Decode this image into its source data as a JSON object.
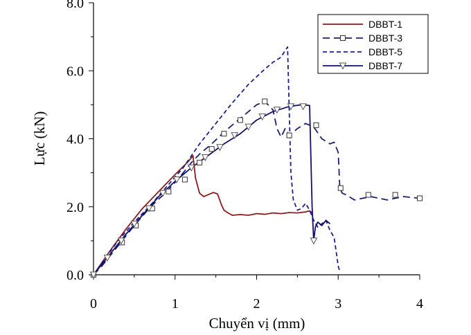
{
  "chart_data": {
    "type": "line",
    "title": "",
    "xlabel": "Chuyển vị (mm)",
    "ylabel": "Lực (kN)",
    "xlim": [
      0,
      4
    ],
    "ylim": [
      0,
      8
    ],
    "xticks": [
      0,
      1,
      2,
      3,
      4
    ],
    "xtick_labels": [
      "0",
      "1",
      "2",
      "3",
      "4"
    ],
    "yticks": [
      0,
      2,
      4,
      6,
      8
    ],
    "ytick_labels": [
      "0.0",
      "2.0",
      "4.0",
      "6.0",
      "8.0"
    ],
    "grid": false,
    "legend_position": "top-right",
    "series": [
      {
        "name": "DBBT-1",
        "color": "#8b1a1a",
        "dash": "solid",
        "marker": "none",
        "x": [
          0,
          0.2,
          0.4,
          0.6,
          0.8,
          1.0,
          1.15,
          1.22,
          1.25,
          1.3,
          1.35,
          1.4,
          1.47,
          1.52,
          1.57,
          1.6,
          1.65,
          1.7,
          1.8,
          1.9,
          2.0,
          2.1,
          2.2,
          2.3,
          2.4,
          2.5,
          2.6,
          2.65,
          2.68
        ],
        "y": [
          0,
          0.7,
          1.35,
          1.95,
          2.45,
          2.95,
          3.3,
          3.5,
          2.85,
          2.4,
          2.3,
          2.35,
          2.42,
          2.38,
          2.05,
          1.9,
          1.82,
          1.75,
          1.77,
          1.75,
          1.8,
          1.78,
          1.82,
          1.8,
          1.83,
          1.82,
          1.85,
          1.88,
          1.82
        ]
      },
      {
        "name": "DBBT-3",
        "color": "#1a1f6e",
        "dash": "long-dash",
        "marker": "square",
        "x": [
          0,
          0.1,
          0.2,
          0.35,
          0.5,
          0.7,
          0.9,
          1.05,
          1.2,
          1.3,
          1.45,
          1.6,
          1.8,
          2.0,
          2.1,
          2.2,
          2.25,
          2.3,
          2.35,
          2.4,
          2.5,
          2.6,
          2.7,
          2.8,
          2.9,
          2.95,
          3.0,
          3.02,
          3.05,
          3.1,
          3.2,
          3.4,
          3.6,
          3.8,
          4.0
        ],
        "y": [
          0,
          0.25,
          0.55,
          1.0,
          1.45,
          2.0,
          2.45,
          2.85,
          3.3,
          3.55,
          3.85,
          4.2,
          4.6,
          5.0,
          5.1,
          4.85,
          4.3,
          4.05,
          4.3,
          4.1,
          4.3,
          4.45,
          4.35,
          4.0,
          3.85,
          3.9,
          3.6,
          2.55,
          2.4,
          2.35,
          2.2,
          2.3,
          2.2,
          2.3,
          2.25
        ]
      },
      {
        "name": "DBBT-5",
        "color": "#1a1f8e",
        "dash": "short-dash",
        "marker": "none",
        "x": [
          0,
          0.15,
          0.3,
          0.5,
          0.7,
          0.9,
          1.1,
          1.3,
          1.5,
          1.7,
          1.9,
          2.1,
          2.2,
          2.3,
          2.35,
          2.38,
          2.4,
          2.42,
          2.45,
          2.5,
          2.55,
          2.6,
          2.65,
          2.7,
          2.75,
          2.8,
          2.85,
          2.9,
          2.95,
          2.98,
          3.0,
          3.02
        ],
        "y": [
          0,
          0.5,
          1.0,
          1.55,
          2.05,
          2.6,
          3.15,
          3.85,
          4.45,
          5.05,
          5.6,
          6.05,
          6.25,
          6.4,
          6.6,
          6.7,
          4.8,
          3.0,
          2.2,
          1.9,
          1.95,
          2.1,
          1.9,
          1.6,
          1.4,
          1.5,
          1.6,
          1.3,
          1.1,
          0.6,
          0.25,
          0.1
        ]
      },
      {
        "name": "DBBT-7",
        "color": "#10106b",
        "dash": "solid",
        "marker": "triangle-down",
        "x": [
          0,
          0.2,
          0.4,
          0.6,
          0.8,
          1.0,
          1.2,
          1.4,
          1.6,
          1.8,
          2.0,
          2.2,
          2.4,
          2.55,
          2.65,
          2.68,
          2.7,
          2.72,
          2.75,
          2.8,
          2.85,
          2.9
        ],
        "y": [
          0,
          0.6,
          1.2,
          1.75,
          2.3,
          2.75,
          3.15,
          3.5,
          3.85,
          4.15,
          4.55,
          4.8,
          4.95,
          5.0,
          4.98,
          2.0,
          1.0,
          1.4,
          1.55,
          1.45,
          1.6,
          1.5
        ]
      }
    ],
    "markers": {
      "DBBT-3": {
        "x": [
          0,
          0.35,
          0.52,
          0.72,
          0.92,
          1.12,
          1.3,
          1.45,
          1.6,
          1.8,
          2.1,
          2.4,
          2.73,
          3.03,
          3.37,
          3.7,
          4.0
        ],
        "y": [
          0,
          0.95,
          1.45,
          1.95,
          2.45,
          2.8,
          3.3,
          3.7,
          4.15,
          4.55,
          5.1,
          4.1,
          4.4,
          2.55,
          2.35,
          2.35,
          2.25
        ]
      },
      "DBBT-7": {
        "x": [
          0,
          0.17,
          0.34,
          0.5,
          0.68,
          0.85,
          1.02,
          1.2,
          1.37,
          1.55,
          1.73,
          1.9,
          2.07,
          2.25,
          2.42,
          2.57,
          2.7
        ],
        "y": [
          0,
          0.5,
          1.0,
          1.5,
          1.95,
          2.4,
          2.8,
          3.15,
          3.45,
          3.75,
          4.1,
          4.35,
          4.65,
          4.85,
          4.95,
          4.95,
          1.0
        ]
      }
    }
  }
}
